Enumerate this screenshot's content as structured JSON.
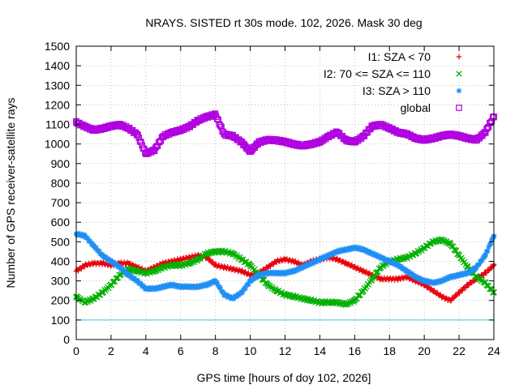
{
  "chart_data": {
    "type": "scatter",
    "title": "NRAYS. SISTED rt 30s mode. 102, 2026. Mask 30 deg",
    "xlabel": "GPS time [hours of doy 102, 2026]",
    "ylabel": "Number of GPS receiver-satellite rays",
    "xlim": [
      0,
      24
    ],
    "ylim": [
      0,
      1500
    ],
    "xticks": [
      0,
      2,
      4,
      6,
      8,
      10,
      12,
      14,
      16,
      18,
      20,
      22,
      24
    ],
    "yticks": [
      0,
      100,
      200,
      300,
      400,
      500,
      600,
      700,
      800,
      900,
      1000,
      1100,
      1200,
      1300,
      1400,
      1500
    ],
    "grid": true,
    "legend_position": "top-right",
    "reference_line": {
      "y": 100,
      "color": "#39c8d8"
    },
    "series": [
      {
        "name": "I1: SZA < 70",
        "marker": "+",
        "color": "#e8000b",
        "x": [
          0,
          0.5,
          1,
          1.5,
          2,
          2.5,
          3,
          3.5,
          4,
          4.5,
          5,
          5.5,
          6,
          6.5,
          7,
          7.5,
          8,
          8.5,
          9,
          9.5,
          10,
          10.5,
          11,
          11.5,
          12,
          12.5,
          13,
          13.5,
          14,
          14.5,
          15,
          15.5,
          16,
          16.5,
          17,
          17.5,
          18,
          18.5,
          19,
          19.5,
          20,
          20.5,
          21,
          21.5,
          22,
          22.5,
          23,
          23.5,
          24
        ],
        "y": [
          350,
          380,
          390,
          390,
          380,
          390,
          390,
          370,
          350,
          370,
          390,
          400,
          410,
          420,
          430,
          420,
          380,
          370,
          360,
          350,
          330,
          340,
          370,
          400,
          410,
          400,
          380,
          400,
          410,
          420,
          410,
          390,
          370,
          350,
          330,
          310,
          310,
          310,
          320,
          300,
          280,
          250,
          220,
          200,
          240,
          280,
          310,
          340,
          380
        ]
      },
      {
        "name": "I2: 70 <= SZA <= 110",
        "marker": "x",
        "color": "#00b000",
        "x": [
          0,
          0.5,
          1,
          1.5,
          2,
          2.5,
          3,
          3.5,
          4,
          4.5,
          5,
          5.5,
          6,
          6.5,
          7,
          7.5,
          8,
          8.5,
          9,
          9.5,
          10,
          10.5,
          11,
          11.5,
          12,
          12.5,
          13,
          13.5,
          14,
          14.5,
          15,
          15.5,
          16,
          16.5,
          17,
          17.5,
          18,
          18.5,
          19,
          19.5,
          20,
          20.5,
          21,
          21.5,
          22,
          22.5,
          23,
          23.5,
          24
        ],
        "y": [
          220,
          190,
          210,
          240,
          280,
          330,
          360,
          350,
          340,
          350,
          370,
          380,
          380,
          390,
          410,
          440,
          450,
          450,
          440,
          410,
          380,
          330,
          280,
          250,
          230,
          220,
          210,
          200,
          190,
          190,
          190,
          180,
          200,
          250,
          310,
          370,
          400,
          410,
          420,
          440,
          470,
          500,
          510,
          490,
          430,
          370,
          320,
          290,
          240
        ]
      },
      {
        "name": "I3: SZA > 110",
        "marker": "*",
        "color": "#1e8ff5",
        "x": [
          0,
          0.5,
          1,
          1.5,
          2,
          2.5,
          3,
          3.5,
          4,
          4.5,
          5,
          5.5,
          6,
          6.5,
          7,
          7.5,
          8,
          8.5,
          9,
          9.5,
          10,
          10.5,
          11,
          11.5,
          12,
          12.5,
          13,
          13.5,
          14,
          14.5,
          15,
          15.5,
          16,
          16.5,
          17,
          17.5,
          18,
          18.5,
          19,
          19.5,
          20,
          20.5,
          21,
          21.5,
          22,
          22.5,
          23,
          23.5,
          24
        ],
        "y": [
          540,
          530,
          480,
          430,
          400,
          370,
          330,
          300,
          260,
          260,
          270,
          280,
          270,
          270,
          270,
          280,
          300,
          230,
          210,
          240,
          300,
          330,
          340,
          340,
          340,
          350,
          370,
          390,
          410,
          430,
          450,
          460,
          470,
          460,
          440,
          420,
          400,
          380,
          350,
          320,
          300,
          290,
          300,
          320,
          330,
          340,
          370,
          430,
          530
        ]
      },
      {
        "name": "global",
        "marker": "square",
        "color": "#b000e0",
        "x": [
          0,
          0.5,
          1,
          1.5,
          2,
          2.5,
          3,
          3.5,
          4,
          4.5,
          5,
          5.5,
          6,
          6.5,
          7,
          7.5,
          8,
          8.5,
          9,
          9.5,
          10,
          10.5,
          11,
          11.5,
          12,
          12.5,
          13,
          13.5,
          14,
          14.5,
          15,
          15.5,
          16,
          16.5,
          17,
          17.5,
          18,
          18.5,
          19,
          19.5,
          20,
          20.5,
          21,
          21.5,
          22,
          22.5,
          23,
          23.5,
          24
        ],
        "y": [
          1110,
          1090,
          1070,
          1080,
          1090,
          1100,
          1080,
          1050,
          950,
          970,
          1040,
          1060,
          1070,
          1090,
          1120,
          1140,
          1150,
          1050,
          1040,
          1010,
          960,
          1010,
          1020,
          1020,
          1010,
          1000,
          990,
          1000,
          1010,
          1040,
          1060,
          1020,
          1010,
          1040,
          1090,
          1100,
          1080,
          1060,
          1050,
          1030,
          1020,
          1030,
          1040,
          1050,
          1040,
          1030,
          1020,
          1060,
          1140
        ]
      }
    ]
  }
}
